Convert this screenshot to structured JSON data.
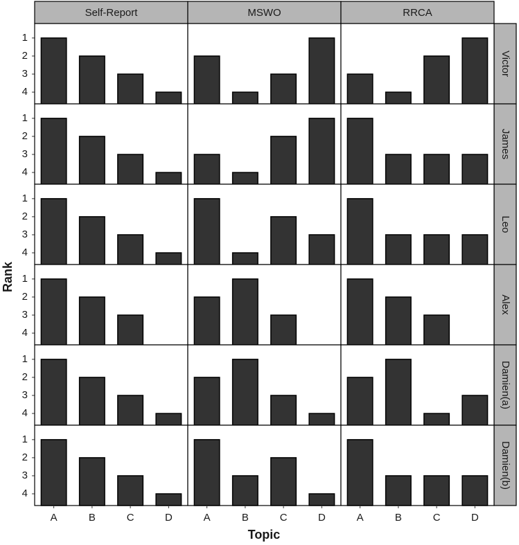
{
  "chart_data": {
    "type": "bar",
    "x_label": "Topic",
    "y_label": "Rank",
    "columns": [
      "Self-Report",
      "MSWO",
      "RRCA"
    ],
    "categories": [
      "A",
      "B",
      "C",
      "D"
    ],
    "color": "#333333",
    "ylim": [
      4.65,
      0.2
    ],
    "yticks": [
      1,
      2,
      3,
      4
    ],
    "facets": [
      {
        "row": "Victor",
        "values": [
          [
            1,
            2,
            3,
            4
          ],
          [
            2,
            4,
            3,
            1
          ],
          [
            3,
            4,
            2,
            1
          ]
        ]
      },
      {
        "row": "James",
        "values": [
          [
            1,
            2,
            3,
            4
          ],
          [
            3,
            4,
            2,
            1
          ],
          [
            1,
            3,
            3,
            3
          ]
        ]
      },
      {
        "row": "Leo",
        "values": [
          [
            1,
            2,
            3,
            4
          ],
          [
            1,
            4,
            2,
            3
          ],
          [
            1,
            3,
            3,
            3
          ]
        ]
      },
      {
        "row": "Alex",
        "values": [
          [
            1,
            2,
            3,
            null
          ],
          [
            2,
            1,
            3,
            null
          ],
          [
            1,
            2,
            3,
            null
          ]
        ]
      },
      {
        "row": "Damien(a)",
        "values": [
          [
            1,
            2,
            3,
            4
          ],
          [
            2,
            1,
            3,
            4
          ],
          [
            2,
            1,
            4,
            3
          ]
        ]
      },
      {
        "row": "Damien(b)",
        "values": [
          [
            1,
            2,
            3,
            4
          ],
          [
            1,
            3,
            2,
            4
          ],
          [
            1,
            3,
            3,
            3
          ]
        ]
      }
    ]
  }
}
